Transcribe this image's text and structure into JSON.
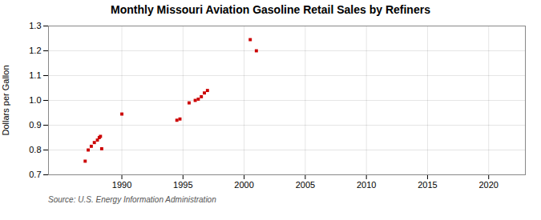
{
  "chart_data": {
    "type": "scatter",
    "title": "Monthly Missouri Aviation Gasoline Retail Sales by Refiners",
    "ylabel": "Dollars per Gallon",
    "source": "Source: U.S. Energy Information Administration",
    "color": "#cc0000",
    "marker": "square",
    "x": [
      1987.0,
      1987.25,
      1987.5,
      1987.75,
      1988.0,
      1988.15,
      1988.25,
      1988.35,
      1990.0,
      1994.5,
      1994.75,
      1995.5,
      1996.0,
      1996.25,
      1996.5,
      1996.75,
      1997.0,
      2000.5,
      2001.0
    ],
    "values": [
      0.755,
      0.8,
      0.815,
      0.83,
      0.84,
      0.85,
      0.855,
      0.805,
      0.945,
      0.92,
      0.925,
      0.99,
      1.0,
      1.005,
      1.015,
      1.03,
      1.04,
      1.245,
      1.2
    ],
    "xlim": [
      1984,
      2023
    ],
    "xticks": [
      1990,
      1995,
      2000,
      2005,
      2010,
      2015,
      2020
    ],
    "ylim": [
      0.7,
      1.3
    ],
    "yticks": [
      0.7,
      0.8,
      0.9,
      {
        "value": 1.0,
        "label": "1.0"
      },
      1.1,
      1.2,
      1.3
    ],
    "grid": true
  }
}
